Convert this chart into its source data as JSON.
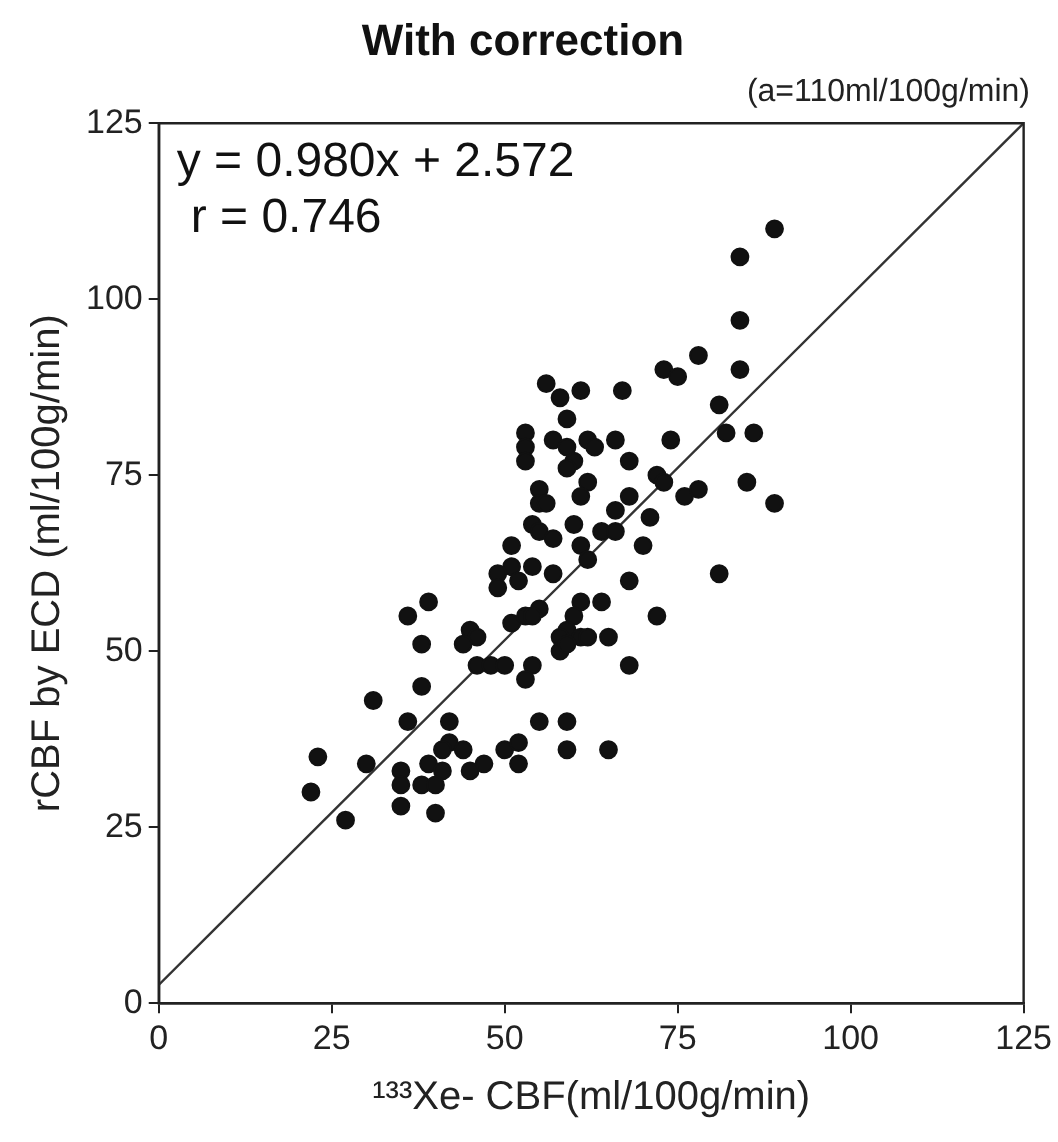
{
  "chart_data": {
    "type": "scatter",
    "title": "With correction",
    "subtitle": "(a=110ml/100g/min)",
    "xlabel": "¹³³Xe- CBF(ml/100g/min)",
    "ylabel": "rCBF by ECD (ml/100g/min)",
    "annotations": [
      "y = 0.980x + 2.572",
      "r = 0.746"
    ],
    "xlim": [
      0,
      125
    ],
    "ylim": [
      0,
      125
    ],
    "xticks": [
      0,
      25,
      50,
      75,
      100,
      125
    ],
    "yticks": [
      0,
      25,
      50,
      75,
      100,
      125
    ],
    "grid": false,
    "legend": false,
    "marker": "circle",
    "series": [
      {
        "color": "#111111",
        "x": [
          89,
          84,
          84,
          78,
          73,
          75,
          84,
          81,
          82,
          86,
          74,
          85,
          89,
          81,
          72,
          73,
          76,
          78,
          67,
          61,
          66,
          68,
          62,
          63,
          60,
          62,
          61,
          68,
          66,
          71,
          60,
          64,
          66,
          61,
          62,
          70,
          68,
          61,
          64,
          72,
          59,
          56,
          58,
          53,
          57,
          53,
          53,
          59,
          59,
          55,
          55,
          56,
          54,
          55,
          57,
          51,
          51,
          49,
          52,
          49,
          54,
          57,
          39,
          36,
          55,
          60,
          51,
          53,
          54,
          45,
          46,
          44,
          38,
          59,
          58,
          61,
          62,
          65,
          58,
          59,
          46,
          48,
          50,
          54,
          53,
          68,
          38,
          31,
          36,
          42,
          55,
          59,
          59,
          65,
          42,
          44,
          41,
          39,
          47,
          50,
          52,
          52,
          45,
          41,
          35,
          35,
          38,
          30,
          23,
          22,
          27,
          35,
          40,
          40
        ],
        "values": [
          110,
          106,
          97,
          92,
          90,
          89,
          90,
          85,
          81,
          81,
          80,
          74,
          71,
          61,
          75,
          74,
          72,
          73,
          87,
          87,
          80,
          77,
          80,
          79,
          77,
          74,
          72,
          72,
          70,
          69,
          68,
          67,
          67,
          65,
          63,
          65,
          60,
          57,
          57,
          55,
          83,
          88,
          86,
          81,
          80,
          79,
          77,
          79,
          76,
          73,
          71,
          71,
          68,
          67,
          66,
          65,
          62,
          61,
          60,
          59,
          62,
          61,
          57,
          55,
          56,
          55,
          54,
          55,
          55,
          53,
          52,
          51,
          51,
          53,
          52,
          52,
          52,
          52,
          50,
          51,
          48,
          48,
          48,
          48,
          46,
          48,
          45,
          43,
          40,
          40,
          40,
          40,
          36,
          36,
          37,
          36,
          36,
          34,
          34,
          36,
          37,
          34,
          33,
          33,
          33,
          31,
          31,
          34,
          35,
          30,
          26,
          28,
          31,
          27
        ]
      },
      {
        "type": "line",
        "color": "#333333",
        "marker": "none",
        "x": [
          0,
          125
        ],
        "values": [
          2.6,
          125
        ]
      }
    ]
  }
}
